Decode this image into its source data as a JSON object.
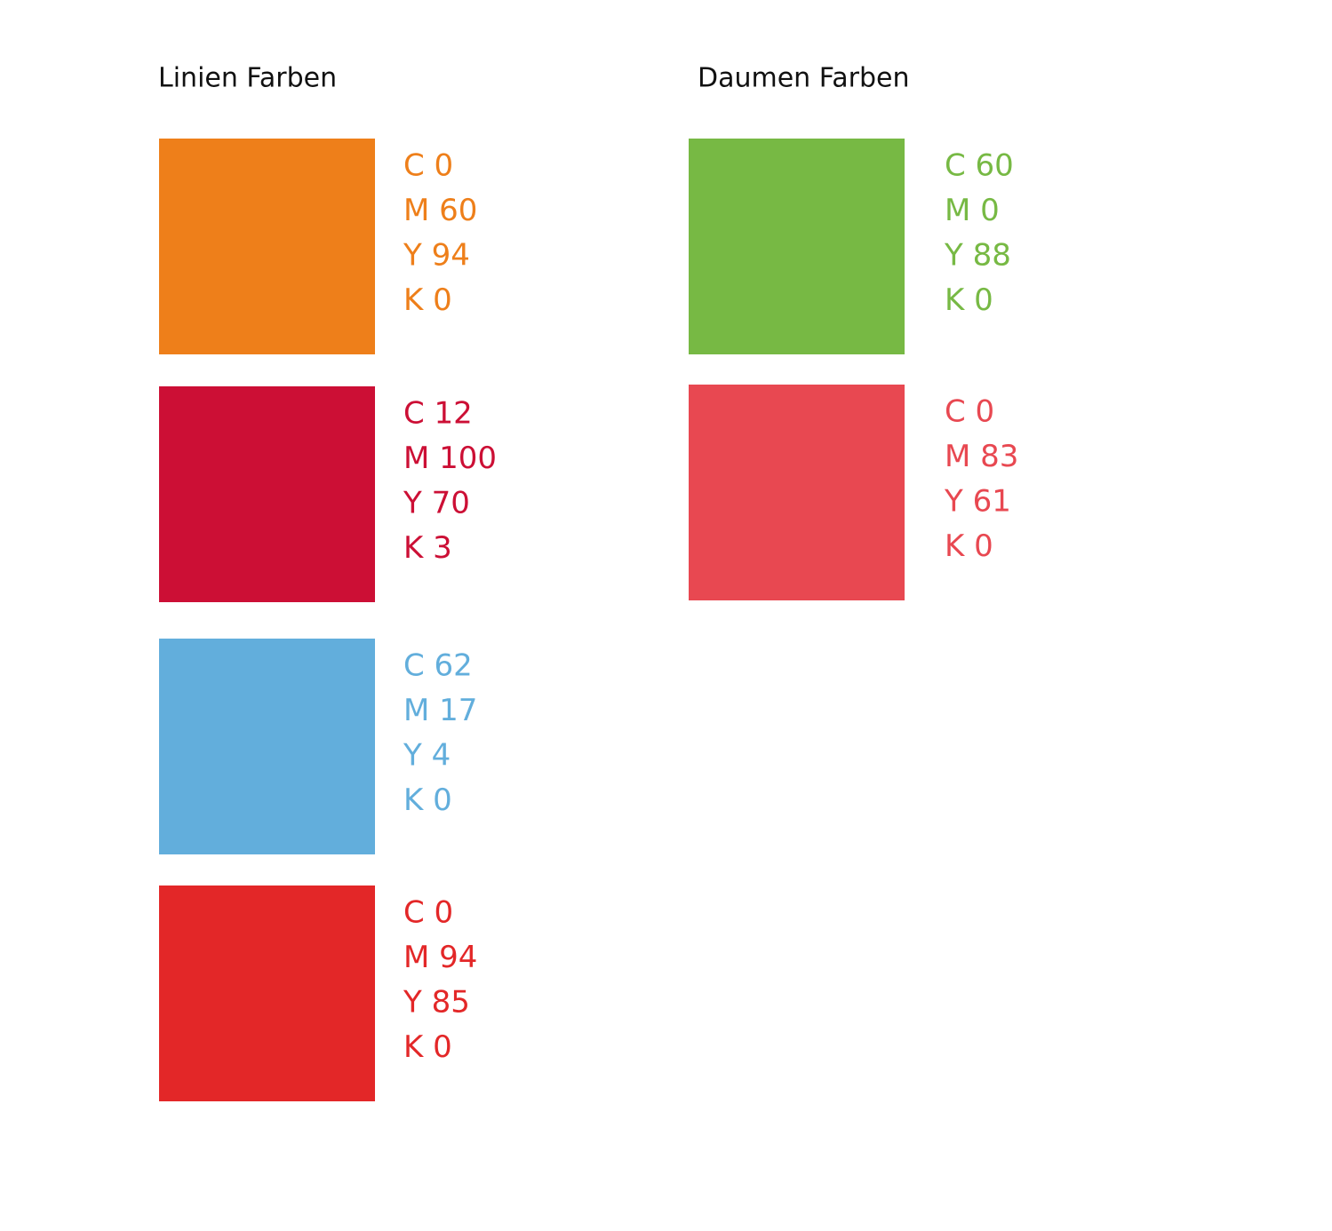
{
  "groups": [
    {
      "title": "Linien Farben",
      "swatches": [
        {
          "color": "#ee7f1a",
          "lines": [
            "C 0",
            "M 60",
            "Y 94",
            "K 0"
          ]
        },
        {
          "color": "#cc0f35",
          "lines": [
            "C 12",
            "M 100",
            "Y 70",
            "K 3"
          ]
        },
        {
          "color": "#62aedc",
          "lines": [
            "C 62",
            "M 17",
            "Y 4",
            "K 0"
          ]
        },
        {
          "color": "#e32728",
          "lines": [
            "C 0",
            "M 94",
            "Y 85",
            "K 0"
          ]
        }
      ]
    },
    {
      "title": "Daumen Farben",
      "swatches": [
        {
          "color": "#77b944",
          "lines": [
            "C 60",
            "M 0",
            "Y 88",
            "K 0"
          ]
        },
        {
          "color": "#e84851",
          "lines": [
            "C 0",
            "M 83",
            "Y 61",
            "K 0"
          ]
        }
      ]
    }
  ]
}
